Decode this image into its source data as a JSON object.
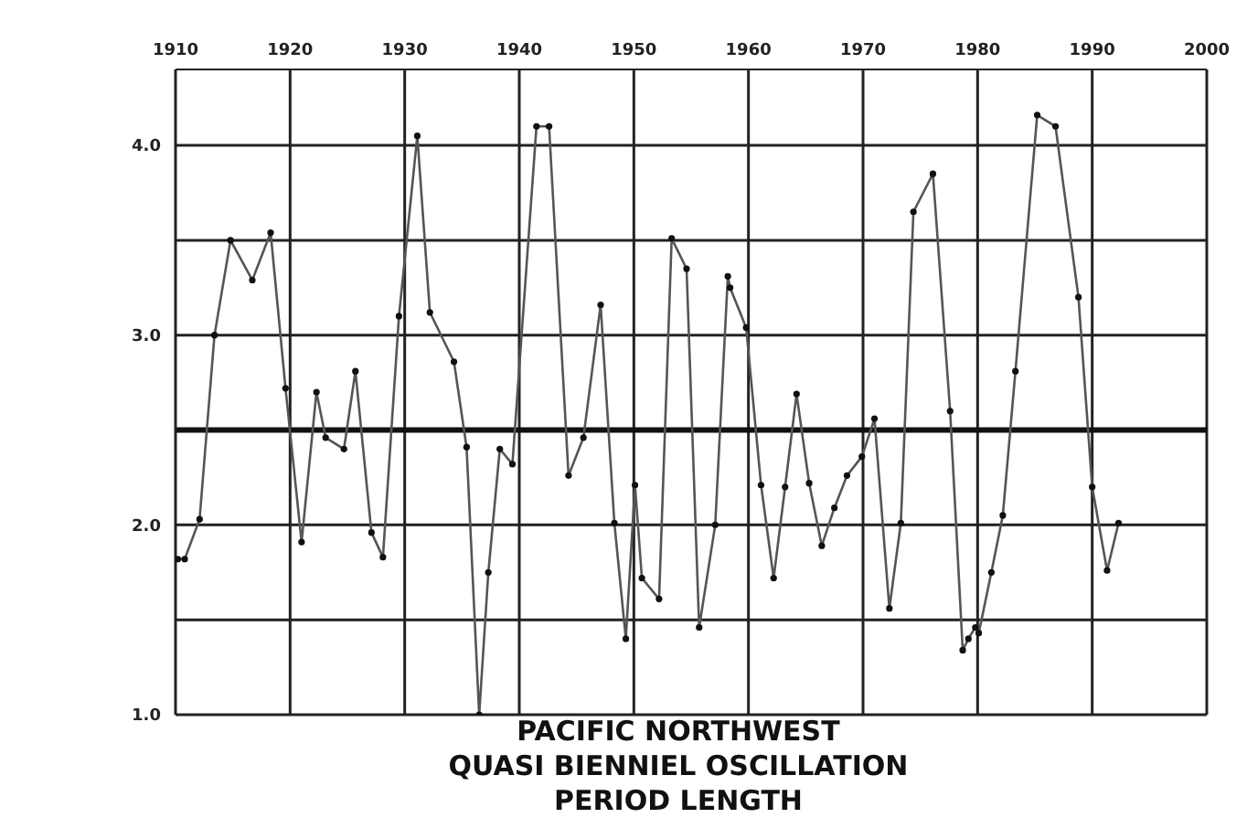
{
  "chart_data": {
    "type": "line",
    "title": "PACIFIC NORTHWEST",
    "subtitle": "QUASI BIENNIEL OSCILLATION",
    "annotations": [
      "PERIOD LENGTH"
    ],
    "x": [
      1910.2,
      1910.8,
      1912.1,
      1913.4,
      1914.8,
      1916.7,
      1918.3,
      1919.6,
      1921.0,
      1922.3,
      1923.1,
      1924.7,
      1925.7,
      1927.1,
      1928.1,
      1929.5,
      1931.1,
      1932.2,
      1934.3,
      1935.4,
      1936.5,
      1937.3,
      1938.3,
      1939.4,
      1941.5,
      1942.6,
      1944.3,
      1945.6,
      1947.1,
      1948.3,
      1949.3,
      1950.1,
      1950.7,
      1952.2,
      1953.3,
      1954.6,
      1955.7,
      1957.1,
      1958.2,
      1958.4,
      1959.8,
      1961.1,
      1962.2,
      1963.2,
      1964.2,
      1965.3,
      1966.4,
      1967.5,
      1968.6,
      1969.9,
      1971.0,
      1972.3,
      1973.3,
      1974.4,
      1976.1,
      1977.6,
      1978.7,
      1979.2,
      1979.8,
      1980.1,
      1981.2,
      1982.2,
      1983.3,
      1985.2,
      1986.8,
      1988.8,
      1990.0,
      1991.3,
      1992.3
    ],
    "series": [
      {
        "color": "#555555",
        "values": [
          1.82,
          1.82,
          2.03,
          3.0,
          3.5,
          3.29,
          3.54,
          2.72,
          1.91,
          2.7,
          2.46,
          2.4,
          2.81,
          1.96,
          1.83,
          3.1,
          4.05,
          3.12,
          2.86,
          2.41,
          1.0,
          1.75,
          2.4,
          2.32,
          4.1,
          4.1,
          2.26,
          2.46,
          3.16,
          2.01,
          1.4,
          2.21,
          1.72,
          1.61,
          3.51,
          3.35,
          1.46,
          2.0,
          3.31,
          3.25,
          3.04,
          2.21,
          1.72,
          2.2,
          2.69,
          2.22,
          1.89,
          2.09,
          2.26,
          2.36,
          2.56,
          1.56,
          2.01,
          3.65,
          3.85,
          2.6,
          1.34,
          1.4,
          1.46,
          1.43,
          1.75,
          2.05,
          2.81,
          4.16,
          4.1,
          3.2,
          2.2,
          1.76,
          2.01
        ]
      }
    ],
    "xlim": [
      1910,
      2000
    ],
    "xticks": [
      1910,
      1920,
      1930,
      1940,
      1950,
      1960,
      1970,
      1980,
      1990,
      2000
    ],
    "ylim": [
      1,
      4.4
    ],
    "yticks": [
      {
        "value": 1.0,
        "label": "1.0"
      },
      {
        "value": 1.5,
        "label": null
      },
      {
        "value": 2.0,
        "label": "2.0"
      },
      {
        "value": 2.5,
        "label": null
      },
      {
        "value": 3.0,
        "label": "3.0"
      },
      {
        "value": 3.5,
        "label": null
      },
      {
        "value": 4.0,
        "label": "4.0"
      }
    ],
    "ref_lines": [
      {
        "axis": "y",
        "value": 2.5,
        "color": "#111111"
      }
    ],
    "grid": true,
    "marker": "circle",
    "line_style": "solid"
  }
}
